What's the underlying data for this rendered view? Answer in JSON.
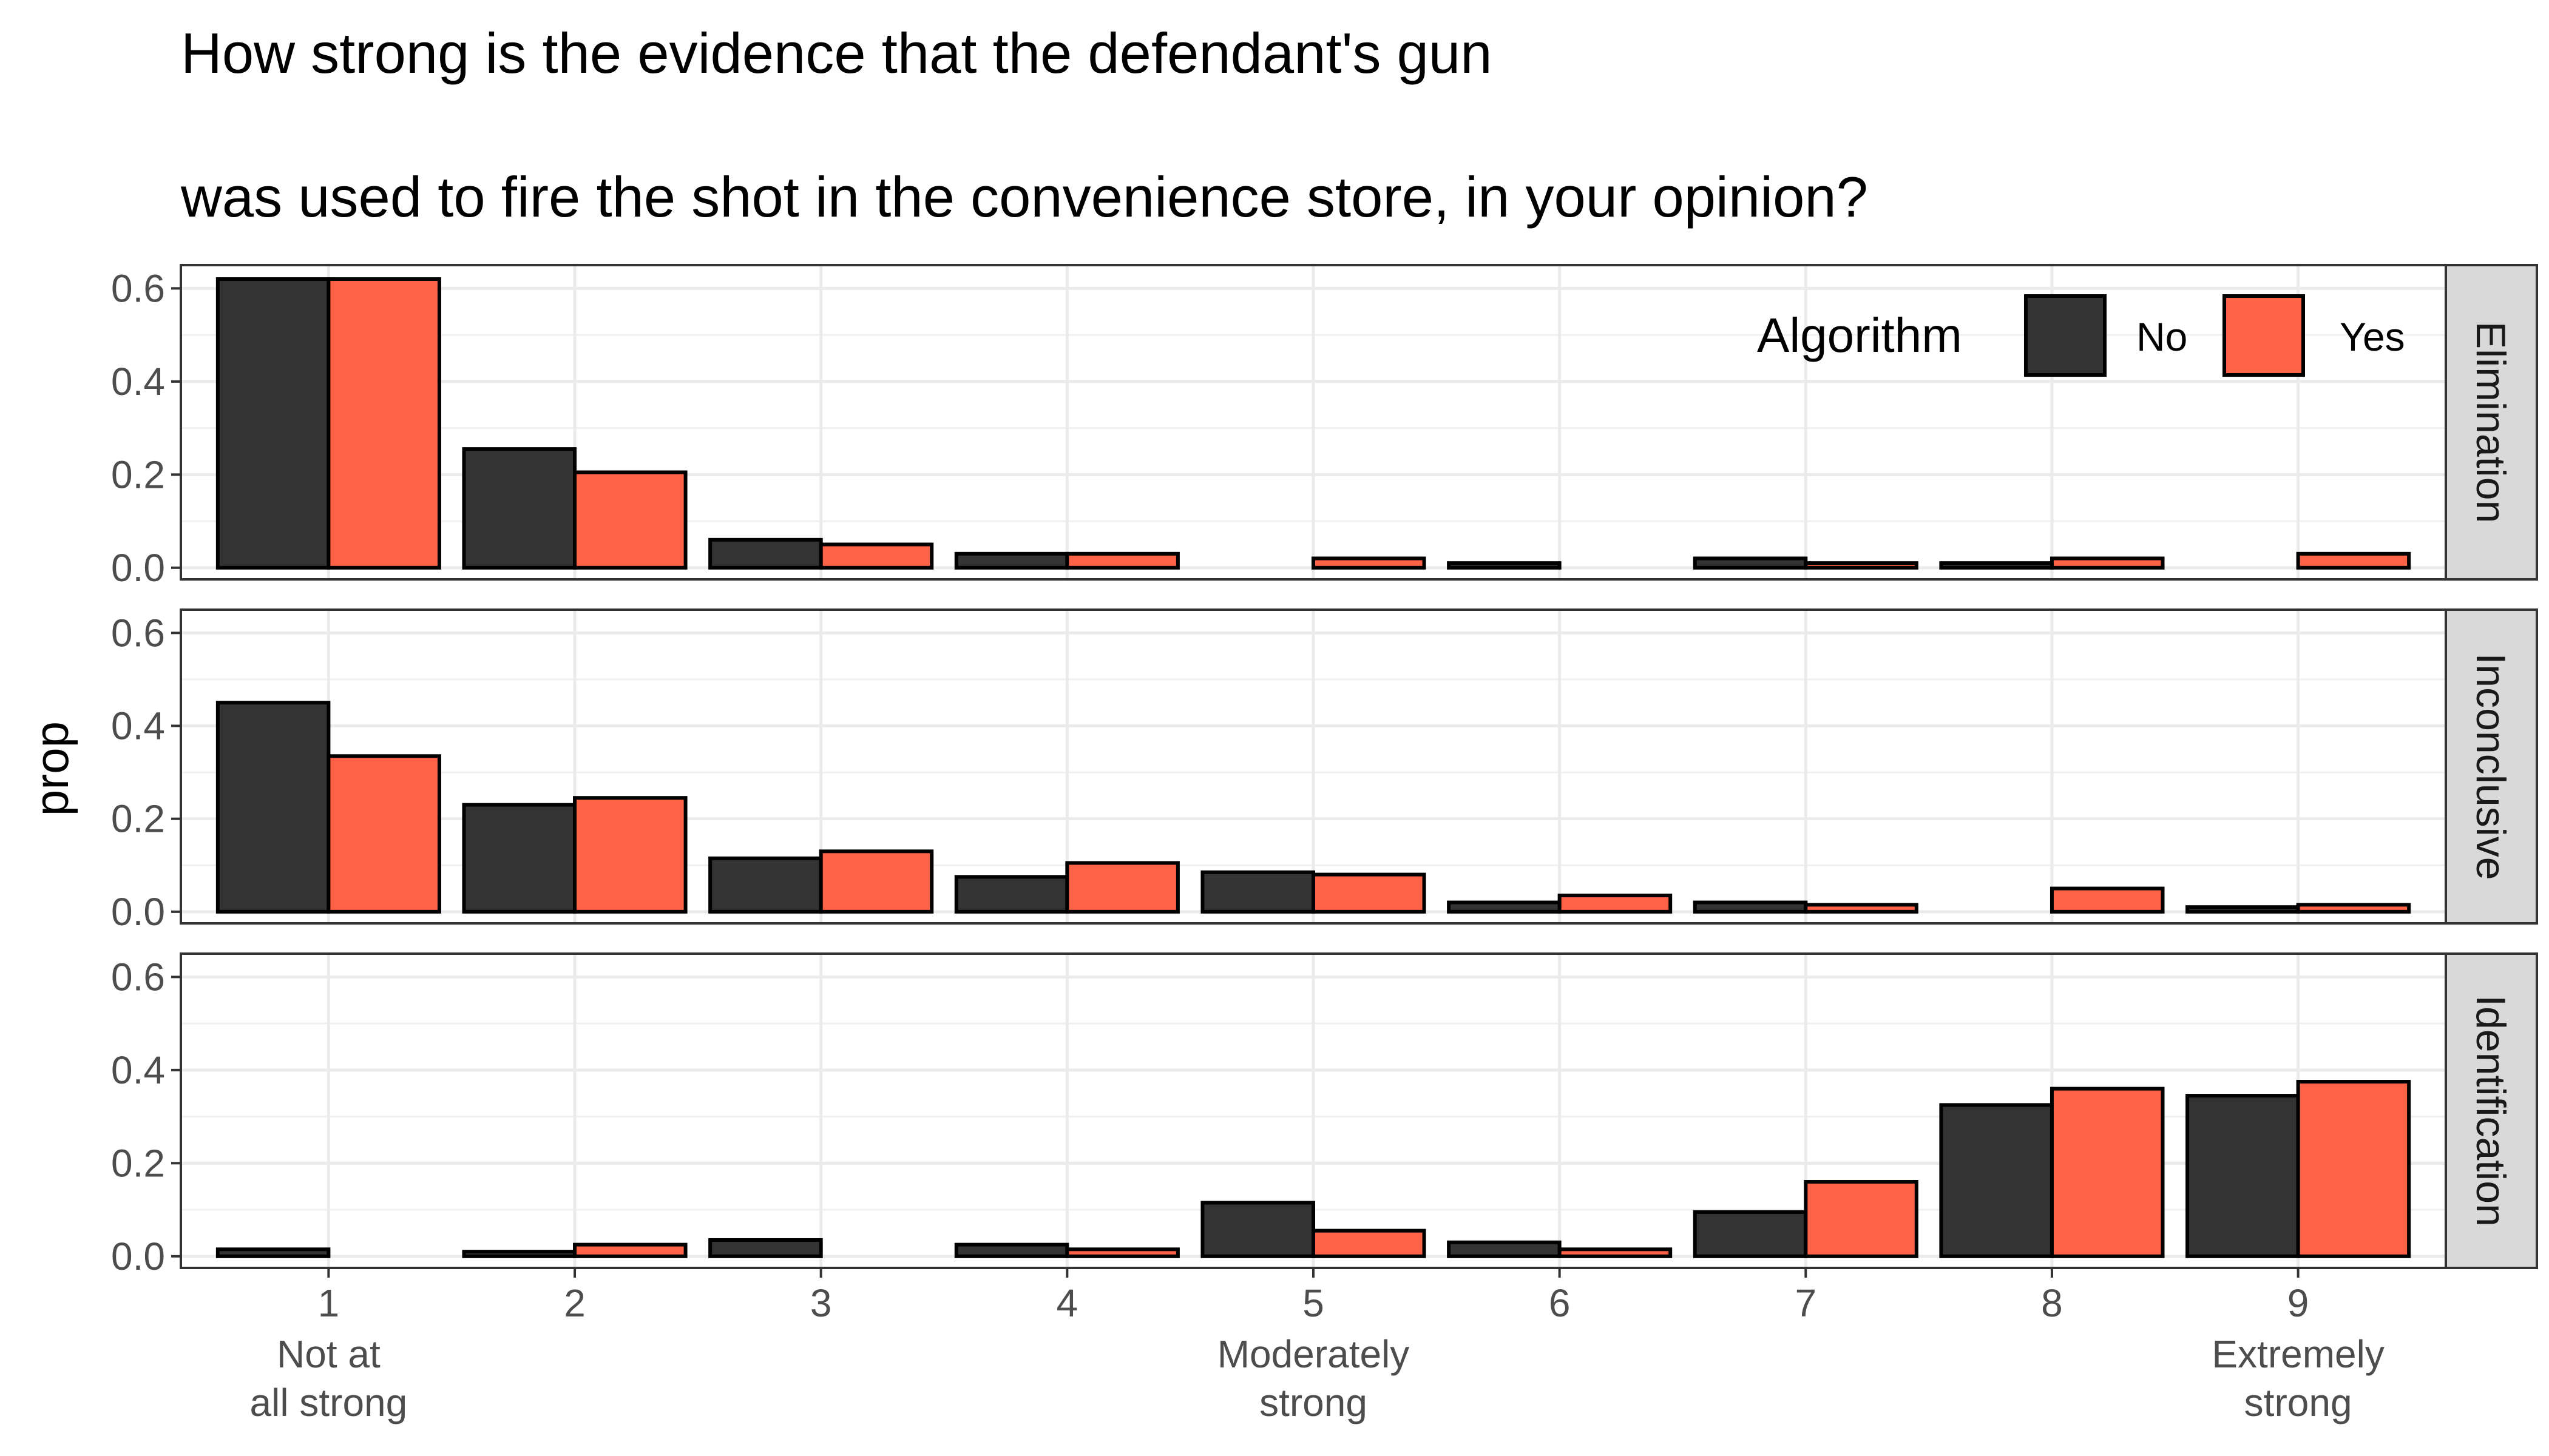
{
  "chart_data": {
    "type": "bar",
    "title_lines": [
      "How strong is the evidence that the defendant's gun",
      "was used to fire the shot in the convenience store, in your opinion?"
    ],
    "ylabel": "prop",
    "xlabel": "",
    "categories": [
      "1",
      "2",
      "3",
      "4",
      "5",
      "6",
      "7",
      "8",
      "9"
    ],
    "x_sublabels": [
      {
        "category": "1",
        "lines": [
          "Not at",
          "all strong"
        ]
      },
      {
        "category": "5",
        "lines": [
          "Moderately",
          "strong"
        ]
      },
      {
        "category": "9",
        "lines": [
          "Extremely",
          "strong"
        ]
      }
    ],
    "ylim": [
      -0.025,
      0.65
    ],
    "yticks": [
      0.0,
      0.2,
      0.4,
      0.6
    ],
    "ytick_labels": [
      "0.0",
      "0.2",
      "0.4",
      "0.6"
    ],
    "grid": true,
    "legend": {
      "title": "Algorithm",
      "position": "top-right inside first panel",
      "entries": [
        {
          "label": "No",
          "color": "#333333"
        },
        {
          "label": "Yes",
          "color": "#ff6347"
        }
      ]
    },
    "facets": [
      {
        "strip": "Elimination",
        "series": [
          {
            "name": "No",
            "values": [
              0.62,
              0.255,
              0.06,
              0.03,
              0.0,
              0.01,
              0.02,
              0.01,
              0.0
            ]
          },
          {
            "name": "Yes",
            "values": [
              0.62,
              0.205,
              0.05,
              0.03,
              0.02,
              0.0,
              0.01,
              0.02,
              0.03
            ]
          }
        ]
      },
      {
        "strip": "Inconclusive",
        "series": [
          {
            "name": "No",
            "values": [
              0.45,
              0.23,
              0.115,
              0.075,
              0.085,
              0.02,
              0.02,
              0.0,
              0.01
            ]
          },
          {
            "name": "Yes",
            "values": [
              0.335,
              0.245,
              0.13,
              0.105,
              0.08,
              0.035,
              0.015,
              0.05,
              0.015
            ]
          }
        ]
      },
      {
        "strip": "Identification",
        "series": [
          {
            "name": "No",
            "values": [
              0.015,
              0.01,
              0.035,
              0.025,
              0.115,
              0.03,
              0.095,
              0.325,
              0.345
            ]
          },
          {
            "name": "Yes",
            "values": [
              0.0,
              0.025,
              0.0,
              0.015,
              0.055,
              0.015,
              0.16,
              0.36,
              0.375
            ]
          }
        ]
      }
    ]
  }
}
